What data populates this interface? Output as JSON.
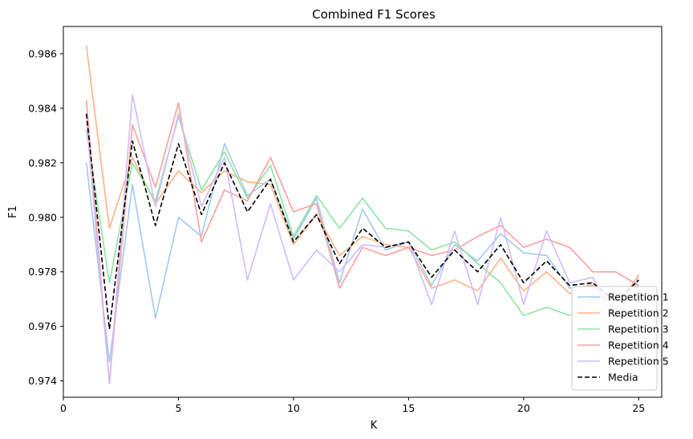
{
  "chart_data": {
    "type": "line",
    "title": "Combined F1 Scores",
    "xlabel": "K",
    "ylabel": "F1",
    "xlim": [
      0,
      26
    ],
    "ylim": [
      0.9734,
      0.987
    ],
    "xticks": [
      0,
      5,
      10,
      15,
      20,
      25
    ],
    "yticks": [
      0.974,
      0.976,
      0.978,
      0.98,
      0.982,
      0.984,
      0.986
    ],
    "ytick_labels": [
      "0.974",
      "0.976",
      "0.978",
      "0.980",
      "0.982",
      "0.984",
      "0.986"
    ],
    "grid": false,
    "legend_position": "bottom-right",
    "x": [
      1,
      2,
      3,
      4,
      5,
      6,
      7,
      8,
      9,
      10,
      11,
      12,
      13,
      14,
      15,
      16,
      17,
      18,
      19,
      20,
      21,
      22,
      23,
      24,
      25
    ],
    "series": [
      {
        "name": "Repetition 1",
        "color": "#a1c9f4",
        "dash": "solid",
        "values": [
          0.982,
          0.9747,
          0.9812,
          0.9763,
          0.98,
          0.9793,
          0.9827,
          0.9808,
          0.9814,
          0.9792,
          0.9807,
          0.9776,
          0.9803,
          0.9788,
          0.9791,
          0.9775,
          0.979,
          0.9784,
          0.9794,
          0.9787,
          0.9786,
          0.9774,
          0.9775,
          0.9764,
          0.9777
        ]
      },
      {
        "name": "Repetition 2",
        "color": "#ffb482",
        "dash": "solid",
        "values": [
          0.9863,
          0.9796,
          0.9822,
          0.9805,
          0.9817,
          0.9809,
          0.9817,
          0.9813,
          0.9812,
          0.979,
          0.9801,
          0.9786,
          0.9793,
          0.979,
          0.9789,
          0.9774,
          0.9777,
          0.9773,
          0.9785,
          0.9773,
          0.978,
          0.9772,
          0.9776,
          0.9766,
          0.9779
        ]
      },
      {
        "name": "Repetition 3",
        "color": "#8de5a1",
        "dash": "solid",
        "values": [
          0.9832,
          0.9776,
          0.982,
          0.9806,
          0.9837,
          0.981,
          0.9824,
          0.9807,
          0.9819,
          0.9793,
          0.9808,
          0.9796,
          0.9807,
          0.9796,
          0.9795,
          0.9788,
          0.9791,
          0.9783,
          0.9776,
          0.9764,
          0.9767,
          0.9764,
          0.977,
          0.9771,
          0.9775
        ]
      },
      {
        "name": "Repetition 4",
        "color": "#ff9f9b",
        "dash": "solid",
        "values": [
          0.9843,
          0.9739,
          0.9834,
          0.9811,
          0.9842,
          0.9791,
          0.981,
          0.9806,
          0.9822,
          0.9802,
          0.9805,
          0.9774,
          0.9789,
          0.9786,
          0.9789,
          0.9786,
          0.9788,
          0.9793,
          0.9797,
          0.9789,
          0.9792,
          0.9789,
          0.978,
          0.978,
          0.9775
        ]
      },
      {
        "name": "Repetition 5",
        "color": "#d0bbff",
        "dash": "solid",
        "values": [
          0.9836,
          0.9739,
          0.9845,
          0.9804,
          0.9838,
          0.9804,
          0.9822,
          0.9777,
          0.9805,
          0.9777,
          0.9788,
          0.978,
          0.979,
          0.9789,
          0.9791,
          0.9768,
          0.9795,
          0.9768,
          0.98,
          0.9768,
          0.9795,
          0.9776,
          0.9778,
          0.9762,
          0.9778
        ]
      },
      {
        "name": "Media",
        "color": "#000000",
        "dash": "dashed",
        "values": [
          0.9838,
          0.9759,
          0.9828,
          0.9797,
          0.9827,
          0.9801,
          0.982,
          0.9802,
          0.9814,
          0.9791,
          0.9801,
          0.9783,
          0.9796,
          0.9789,
          0.9791,
          0.9778,
          0.9788,
          0.978,
          0.979,
          0.9776,
          0.9784,
          0.9775,
          0.9776,
          0.9769,
          0.9777
        ]
      }
    ]
  }
}
